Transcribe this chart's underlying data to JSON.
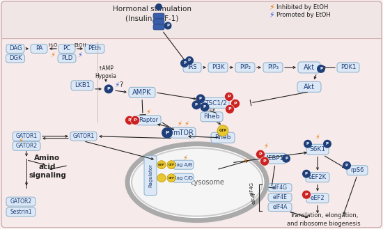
{
  "bg_outer": "#f9f0f0",
  "bg_top": "#f0e4e4",
  "bg_main": "#f8ecec",
  "node_fc": "#dce8f5",
  "node_ec": "#8ab0cc",
  "dark_blue": "#1e3f7a",
  "red_col": "#cc2222",
  "gold_col": "#d4a800",
  "orange_bolt": "#e87800",
  "blue_bolt": "#2255dd",
  "black": "#222222",
  "gray": "#888888",
  "white": "#ffffff",
  "title": "Hormonal stimulation\n(Insulin, IGF-1)",
  "leg1": "Inhibited by EtOH",
  "leg2": "Promoted by EtOH"
}
